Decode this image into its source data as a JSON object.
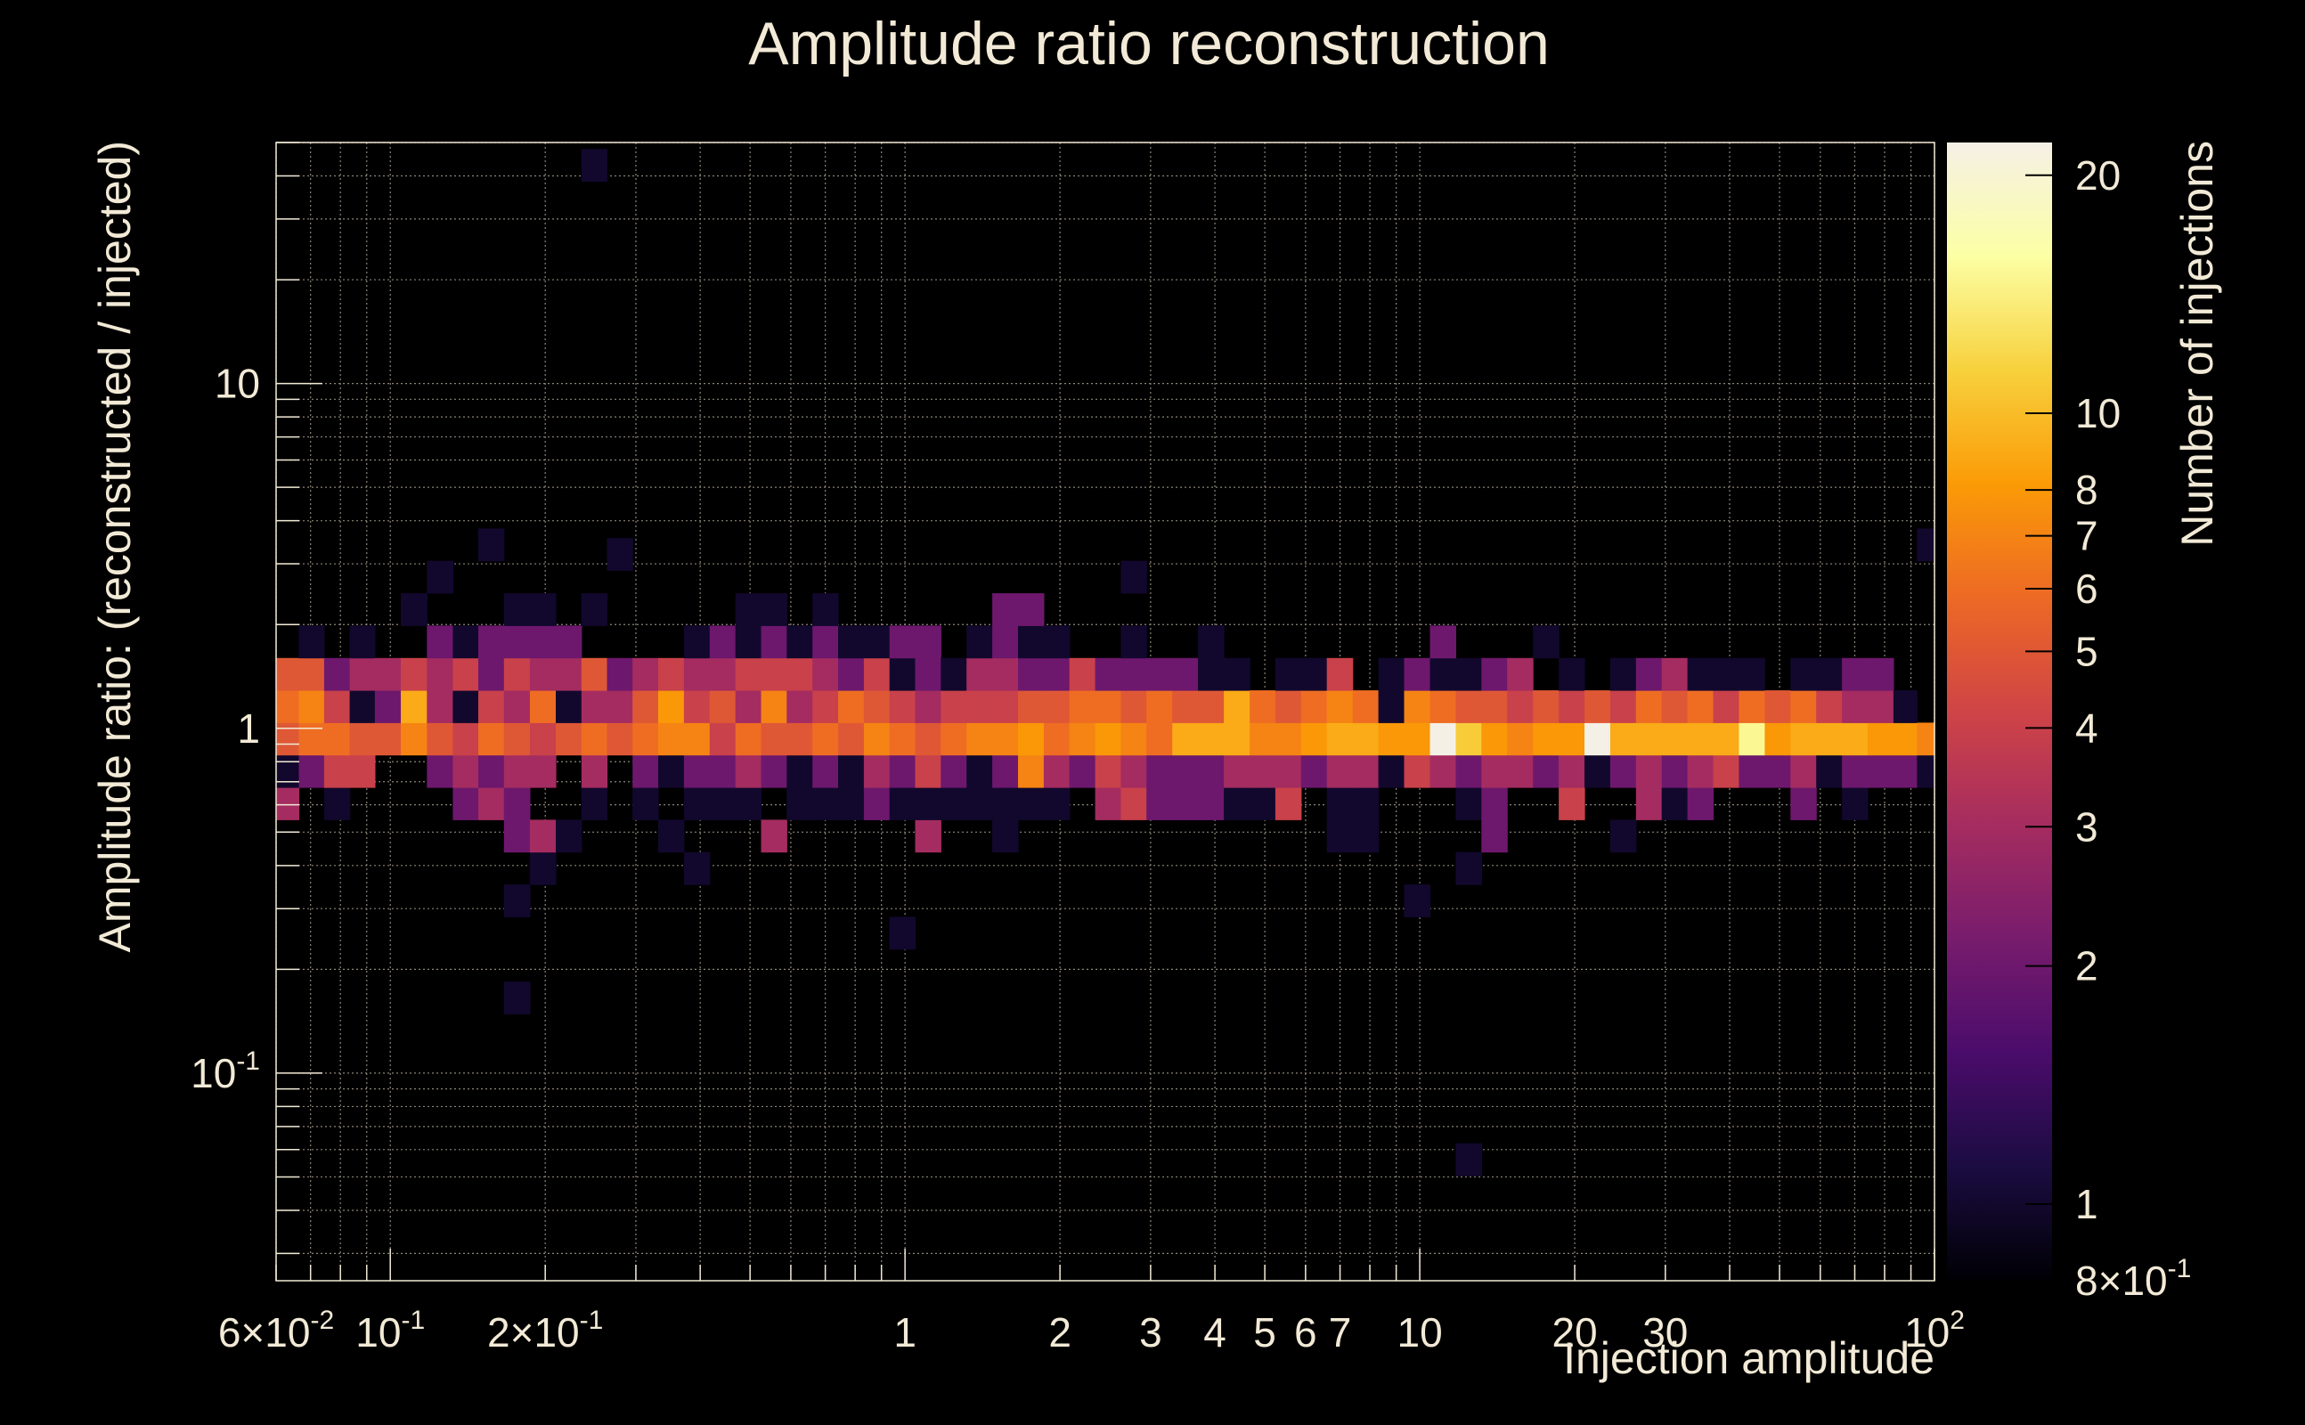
{
  "chart_data": {
    "type": "heatmap",
    "title": "Amplitude ratio reconstruction",
    "xlabel": "Injection amplitude",
    "ylabel": "Amplitude ratio: (reconstructed / injected)",
    "zlabel": "Number of injections",
    "x_scale": "log",
    "y_scale": "log",
    "z_scale": "log",
    "xlim": [
      0.06,
      100
    ],
    "ylim": [
      0.025,
      50
    ],
    "zlim": [
      0.8,
      22
    ],
    "grid": true,
    "colormap": [
      "#000004",
      "#1b0c41",
      "#4a0c6b",
      "#781c6d",
      "#a52c60",
      "#cf4446",
      "#ed6925",
      "#fb9b06",
      "#f7d13d",
      "#fcffa4",
      "#f5f0e6"
    ],
    "x_tick_labels": [
      {
        "value": 0.06,
        "mant": "6",
        "exp": "-2"
      },
      {
        "value": 0.1,
        "mant": "",
        "exp": "-1"
      },
      {
        "value": 0.2,
        "mant": "2",
        "exp": "-1"
      },
      {
        "value": 1,
        "text": "1"
      },
      {
        "value": 2,
        "text": "2"
      },
      {
        "value": 3,
        "text": "3"
      },
      {
        "value": 4,
        "text": "4"
      },
      {
        "value": 5,
        "text": "5"
      },
      {
        "value": 6,
        "text": "6"
      },
      {
        "value": 7,
        "text": "7"
      },
      {
        "value": 10,
        "text": "10"
      },
      {
        "value": 20,
        "text": "20"
      },
      {
        "value": 30,
        "text": "30"
      },
      {
        "value": 100,
        "mant": "",
        "exp": "2"
      }
    ],
    "y_tick_labels": [
      {
        "value": 10,
        "text": "10"
      },
      {
        "value": 1,
        "text": "1"
      },
      {
        "value": 0.1,
        "mant": "",
        "exp": "-1"
      }
    ],
    "z_tick_labels": [
      {
        "value": 20,
        "text": "20"
      },
      {
        "value": 10,
        "text": "10"
      },
      {
        "value": 8,
        "text": "8"
      },
      {
        "value": 7,
        "text": "7"
      },
      {
        "value": 6,
        "text": "6"
      },
      {
        "value": 5,
        "text": "5"
      },
      {
        "value": 4,
        "text": "4"
      },
      {
        "value": 3,
        "text": "3"
      },
      {
        "value": 2,
        "text": "2"
      },
      {
        "value": 1,
        "text": "1"
      },
      {
        "value": 0.8,
        "mant": "8",
        "exp": "-1"
      }
    ],
    "y_bins": [
      0.0562,
      0.0697,
      0.0865,
      0.1074,
      0.1333,
      0.1655,
      0.2054,
      0.255,
      0.3165,
      0.3928,
      0.4876,
      0.6052,
      0.7512,
      0.9324,
      1.1573,
      1.4365,
      1.783,
      2.2132,
      2.7471,
      3.4098,
      4.2324
    ],
    "cells": [
      {
        "x": 0.063,
        "y": [
          0.6052,
          0.7512,
          0.9324,
          1.1573,
          1.4365
        ],
        "n": [
          3,
          1,
          5,
          6,
          5
        ]
      },
      {
        "x": 0.07,
        "y": [
          0.7512,
          0.9324,
          1.1573,
          1.4365,
          1.783
        ],
        "n": [
          2,
          6,
          7,
          5,
          1
        ]
      },
      {
        "x": 0.079,
        "y": [
          0.6052,
          0.7512,
          0.9324,
          1.1573,
          1.4365
        ],
        "n": [
          1,
          4,
          6,
          4,
          2
        ]
      },
      {
        "x": 0.088,
        "y": [
          0.7512,
          0.9324,
          1.1573,
          1.4365,
          1.783
        ],
        "n": [
          4,
          5,
          1,
          3,
          1
        ]
      },
      {
        "x": 0.099,
        "y": [
          0.9324,
          1.1573,
          1.4365
        ],
        "n": [
          5,
          2,
          3
        ]
      },
      {
        "x": 0.111,
        "y": [
          0.9324,
          1.1573,
          1.4365,
          2.2132
        ],
        "n": [
          7,
          9,
          4,
          1
        ]
      },
      {
        "x": 0.125,
        "y": [
          0.7512,
          0.9324,
          1.1573,
          1.4365,
          1.783,
          2.7471
        ],
        "n": [
          2,
          5,
          3,
          3,
          2,
          1
        ]
      },
      {
        "x": 0.14,
        "y": [
          0.6052,
          0.7512,
          0.9324,
          1.1573,
          1.4365,
          1.783
        ],
        "n": [
          2,
          3,
          4,
          1,
          4,
          1
        ]
      },
      {
        "x": 0.157,
        "y": [
          0.6052,
          0.7512,
          0.9324,
          1.1573,
          1.4365,
          1.783,
          3.4098
        ],
        "n": [
          3,
          2,
          6,
          4,
          2,
          2,
          1
        ]
      },
      {
        "x": 0.176,
        "y": [
          0.1655,
          0.3165,
          0.4876,
          0.6052,
          0.7512,
          0.9324,
          1.1573,
          1.4365,
          1.783,
          2.2132
        ],
        "n": [
          1,
          1,
          2,
          2,
          3,
          5,
          3,
          4,
          2,
          1
        ]
      },
      {
        "x": 0.198,
        "y": [
          0.3928,
          0.4876,
          0.7512,
          0.9324,
          1.1573,
          1.4365,
          1.783,
          2.2132
        ],
        "n": [
          1,
          3,
          3,
          4,
          6,
          3,
          2,
          1
        ]
      },
      {
        "x": 0.222,
        "y": [
          0.4876,
          0.9324,
          1.1573,
          1.4365,
          1.783
        ],
        "n": [
          1,
          5,
          1,
          3,
          2
        ]
      },
      {
        "x": 0.249,
        "y": [
          0.6052,
          0.7512,
          0.9324,
          1.1573,
          1.4365,
          2.2132,
          43.0
        ],
        "n": [
          1,
          3,
          6,
          3,
          5,
          1,
          1
        ]
      },
      {
        "x": 0.279,
        "y": [
          0.9324,
          1.1573,
          1.4365,
          3.2
        ],
        "n": [
          5,
          3,
          2,
          1
        ]
      },
      {
        "x": 0.313,
        "y": [
          0.6052,
          0.7512,
          0.9324,
          1.1573,
          1.4365
        ],
        "n": [
          1,
          2,
          6,
          5,
          3
        ]
      },
      {
        "x": 0.351,
        "y": [
          0.4876,
          0.7512,
          0.9324,
          1.1573,
          1.4365
        ],
        "n": [
          1,
          1,
          7,
          8,
          4
        ]
      },
      {
        "x": 0.394,
        "y": [
          0.3928,
          0.6052,
          0.7512,
          0.9324,
          1.1573,
          1.4365,
          1.783
        ],
        "n": [
          1,
          1,
          2,
          7,
          4,
          3,
          1
        ]
      },
      {
        "x": 0.442,
        "y": [
          0.6052,
          0.7512,
          0.9324,
          1.1573,
          1.4365,
          1.783
        ],
        "n": [
          1,
          2,
          4,
          5,
          3,
          2
        ]
      },
      {
        "x": 0.496,
        "y": [
          0.6052,
          0.7512,
          0.9324,
          1.1573,
          1.4365,
          1.783,
          2.2132
        ],
        "n": [
          1,
          3,
          6,
          3,
          4,
          1,
          1
        ]
      },
      {
        "x": 0.556,
        "y": [
          0.4876,
          0.7512,
          0.9324,
          1.1573,
          1.4365,
          1.783,
          2.2132
        ],
        "n": [
          3,
          2,
          5,
          7,
          4,
          2,
          1
        ]
      },
      {
        "x": 0.624,
        "y": [
          0.6052,
          0.7512,
          0.9324,
          1.1573,
          1.4365,
          1.783
        ],
        "n": [
          1,
          1,
          5,
          3,
          4,
          1
        ]
      },
      {
        "x": 0.7,
        "y": [
          0.6052,
          0.7512,
          0.9324,
          1.1573,
          1.4365,
          1.783,
          2.2132
        ],
        "n": [
          1,
          2,
          6,
          4,
          3,
          2,
          1
        ]
      },
      {
        "x": 0.785,
        "y": [
          0.6052,
          0.7512,
          0.9324,
          1.1573,
          1.4365,
          1.783
        ],
        "n": [
          1,
          1,
          5,
          6,
          2,
          1
        ]
      },
      {
        "x": 0.881,
        "y": [
          0.6052,
          0.7512,
          0.9324,
          1.1573,
          1.4365,
          1.783
        ],
        "n": [
          2,
          3,
          7,
          5,
          4,
          1
        ]
      },
      {
        "x": 0.988,
        "y": [
          0.255,
          0.6052,
          0.7512,
          0.9324,
          1.1573,
          1.4365,
          1.783
        ],
        "n": [
          1,
          1,
          2,
          6,
          4,
          1,
          2
        ]
      },
      {
        "x": 1.108,
        "y": [
          0.4876,
          0.6052,
          0.7512,
          0.9324,
          1.1573,
          1.4365,
          1.783
        ],
        "n": [
          3,
          1,
          4,
          5,
          3,
          2,
          2
        ]
      },
      {
        "x": 1.243,
        "y": [
          0.6052,
          0.7512,
          0.9324,
          1.1573,
          1.4365
        ],
        "n": [
          1,
          2,
          6,
          4,
          1
        ]
      },
      {
        "x": 1.395,
        "y": [
          0.6052,
          0.7512,
          0.9324,
          1.1573,
          1.4365,
          1.783
        ],
        "n": [
          1,
          1,
          7,
          4,
          3,
          1
        ]
      },
      {
        "x": 1.565,
        "y": [
          0.4876,
          0.6052,
          0.7512,
          0.9324,
          1.1573,
          1.4365,
          1.783,
          2.2132
        ],
        "n": [
          1,
          1,
          2,
          7,
          4,
          3,
          2,
          2
        ]
      },
      {
        "x": 1.756,
        "y": [
          0.6052,
          0.7512,
          0.9324,
          1.1573,
          1.4365,
          1.783,
          2.2132
        ],
        "n": [
          1,
          7,
          8,
          5,
          2,
          1,
          2
        ]
      },
      {
        "x": 1.97,
        "y": [
          0.6052,
          0.7512,
          0.9324,
          1.1573,
          1.4365,
          1.783
        ],
        "n": [
          1,
          3,
          6,
          5,
          2,
          1
        ]
      },
      {
        "x": 2.21,
        "y": [
          0.7512,
          0.9324,
          1.1573,
          1.4365
        ],
        "n": [
          2,
          7,
          6,
          4
        ]
      },
      {
        "x": 2.48,
        "y": [
          0.6052,
          0.7512,
          0.9324,
          1.1573,
          1.4365
        ],
        "n": [
          3,
          4,
          8,
          6,
          2
        ]
      },
      {
        "x": 2.78,
        "y": [
          0.6052,
          0.7512,
          0.9324,
          1.1573,
          1.4365,
          1.783,
          2.7471
        ],
        "n": [
          4,
          3,
          7,
          5,
          2,
          1,
          1
        ]
      },
      {
        "x": 3.12,
        "y": [
          0.6052,
          0.7512,
          0.9324,
          1.1573,
          1.4365
        ],
        "n": [
          2,
          2,
          6,
          6,
          2
        ]
      },
      {
        "x": 3.5,
        "y": [
          0.6052,
          0.7512,
          0.9324,
          1.1573,
          1.4365
        ],
        "n": [
          2,
          2,
          9,
          5,
          2
        ]
      },
      {
        "x": 3.93,
        "y": [
          0.6052,
          0.7512,
          0.9324,
          1.1573,
          1.4365,
          1.783
        ],
        "n": [
          2,
          2,
          9,
          5,
          1,
          1
        ]
      },
      {
        "x": 4.41,
        "y": [
          0.6052,
          0.7512,
          0.9324,
          1.1573,
          1.4365
        ],
        "n": [
          1,
          3,
          9,
          9,
          1
        ]
      },
      {
        "x": 4.95,
        "y": [
          0.6052,
          0.7512,
          0.9324,
          1.1573
        ],
        "n": [
          1,
          3,
          7,
          6
        ]
      },
      {
        "x": 5.55,
        "y": [
          0.6052,
          0.7512,
          0.9324,
          1.1573,
          1.4365
        ],
        "n": [
          4,
          3,
          7,
          5,
          1
        ]
      },
      {
        "x": 6.23,
        "y": [
          0.7512,
          0.9324,
          1.1573,
          1.4365
        ],
        "n": [
          2,
          8,
          6,
          1
        ]
      },
      {
        "x": 6.99,
        "y": [
          0.4876,
          0.6052,
          0.7512,
          0.9324,
          1.1573,
          1.4365
        ],
        "n": [
          1,
          1,
          3,
          9,
          7,
          4
        ]
      },
      {
        "x": 7.85,
        "y": [
          0.4876,
          0.6052,
          0.7512,
          0.9324,
          1.1573
        ],
        "n": [
          1,
          1,
          3,
          9,
          6
        ]
      },
      {
        "x": 8.8,
        "y": [
          0.7512,
          0.9324,
          1.1573,
          1.4365
        ],
        "n": [
          1,
          8,
          1,
          1
        ]
      },
      {
        "x": 9.88,
        "y": [
          0.3165,
          0.7512,
          0.9324,
          1.1573,
          1.4365
        ],
        "n": [
          1,
          4,
          8,
          7,
          2
        ]
      },
      {
        "x": 11.09,
        "y": [
          0.7512,
          0.9324,
          1.1573,
          1.4365,
          1.783
        ],
        "n": [
          3,
          22,
          6,
          1,
          2
        ]
      },
      {
        "x": 12.44,
        "y": [
          0.0562,
          0.3928,
          0.6052,
          0.7512,
          0.9324,
          1.1573,
          1.4365
        ],
        "n": [
          1,
          1,
          1,
          2,
          11,
          5,
          1
        ]
      },
      {
        "x": 13.96,
        "y": [
          0.4876,
          0.6052,
          0.7512,
          0.9324,
          1.1573,
          1.4365
        ],
        "n": [
          2,
          2,
          3,
          8,
          5,
          2
        ]
      },
      {
        "x": 15.66,
        "y": [
          0.7512,
          0.9324,
          1.1573,
          1.4365
        ],
        "n": [
          3,
          7,
          4,
          3
        ]
      },
      {
        "x": 17.58,
        "y": [
          0.7512,
          0.9324,
          1.1573,
          1.783
        ],
        "n": [
          2,
          8,
          5,
          1
        ]
      },
      {
        "x": 19.72,
        "y": [
          0.6052,
          0.7512,
          0.9324,
          1.1573,
          1.4365
        ],
        "n": [
          4,
          3,
          8,
          4,
          1
        ]
      },
      {
        "x": 22.13,
        "y": [
          0.7512,
          0.9324,
          1.1573
        ],
        "n": [
          1,
          22,
          5
        ]
      },
      {
        "x": 24.83,
        "y": [
          0.4876,
          0.7512,
          0.9324,
          1.1573,
          1.4365
        ],
        "n": [
          1,
          2,
          9,
          4,
          1
        ]
      },
      {
        "x": 27.86,
        "y": [
          0.6052,
          0.7512,
          0.9324,
          1.1573,
          1.4365
        ],
        "n": [
          3,
          3,
          9,
          6,
          2
        ]
      },
      {
        "x": 31.27,
        "y": [
          0.6052,
          0.7512,
          0.9324,
          1.1573,
          1.4365
        ],
        "n": [
          1,
          2,
          9,
          5,
          3
        ]
      },
      {
        "x": 35.08,
        "y": [
          0.6052,
          0.7512,
          0.9324,
          1.1573,
          1.4365
        ],
        "n": [
          2,
          3,
          9,
          6,
          1
        ]
      },
      {
        "x": 39.36,
        "y": [
          0.7512,
          0.9324,
          1.1573,
          1.4365
        ],
        "n": [
          4,
          9,
          4,
          1
        ]
      },
      {
        "x": 44.17,
        "y": [
          0.7512,
          0.9324,
          1.1573,
          1.4365
        ],
        "n": [
          2,
          15,
          6,
          1
        ]
      },
      {
        "x": 49.56,
        "y": [
          0.7512,
          0.9324,
          1.1573
        ],
        "n": [
          2,
          8,
          5
        ]
      },
      {
        "x": 55.61,
        "y": [
          0.6052,
          0.7512,
          0.9324,
          1.1573,
          1.4365
        ],
        "n": [
          2,
          3,
          9,
          6,
          1
        ]
      },
      {
        "x": 62.4,
        "y": [
          0.7512,
          0.9324,
          1.1573,
          1.4365
        ],
        "n": [
          1,
          9,
          4,
          1
        ]
      },
      {
        "x": 70.02,
        "y": [
          0.6052,
          0.7512,
          0.9324,
          1.1573,
          1.4365
        ],
        "n": [
          1,
          2,
          9,
          3,
          2
        ]
      },
      {
        "x": 78.57,
        "y": [
          0.7512,
          0.9324,
          1.1573,
          1.4365
        ],
        "n": [
          2,
          8,
          3,
          2
        ]
      },
      {
        "x": 88.16,
        "y": [
          0.7512,
          0.9324,
          1.1573
        ],
        "n": [
          2,
          8,
          1
        ]
      },
      {
        "x": 97.0,
        "y": [
          0.7512,
          0.9324,
          3.4098
        ],
        "n": [
          1,
          7,
          1
        ]
      }
    ]
  }
}
